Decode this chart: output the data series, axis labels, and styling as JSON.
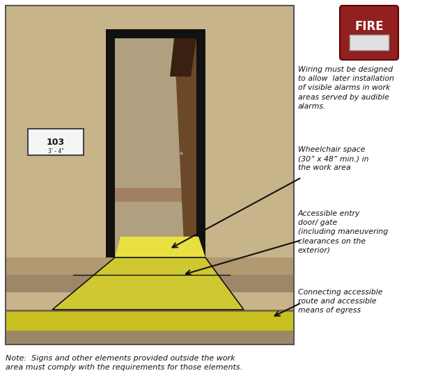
{
  "bg_color": "#ffffff",
  "wall_color": "#c8b48a",
  "wall_lower_color": "#b09870",
  "floor_dark_color": "#9c8868",
  "floor_yellow_color": "#c8c020",
  "floor_yellow_light": "#e0d840",
  "trap_inner_color": "#e8e040",
  "trap_outer_color": "#d0c830",
  "door_frame_color": "#111111",
  "door_interior_color": "#b0a080",
  "door_panel_color": "#6a4828",
  "door_panel_dark": "#3a2010",
  "sign_bg": "#f5f5f5",
  "sign_border": "#444444",
  "fire_alarm_red": "#922020",
  "fire_alarm_white": "#e0e0e0",
  "arrow_color": "#111111",
  "text_color": "#111111",
  "note_text": "Note:  Signs and other elements provided outside the work\narea must comply with the requirements for those elements.",
  "label_wiring": "Wiring must be designed\nto allow  later installation\nof visible alarms in work\nareas served by audible\nalarms.",
  "label_wheelchair": "Wheelchair space\n(30” x 48” min.) in\nthe work area",
  "label_door": "Accessible entry\ndoor/ gate\n(including maneuvering\nclearances on the\nexterior)",
  "label_route": "Connecting accessible\nroute and accessible\nmeans of egress",
  "room_number": "103",
  "room_subtext": "3' - 4\"",
  "fig_w": 6.39,
  "fig_h": 5.59,
  "dpi": 100
}
